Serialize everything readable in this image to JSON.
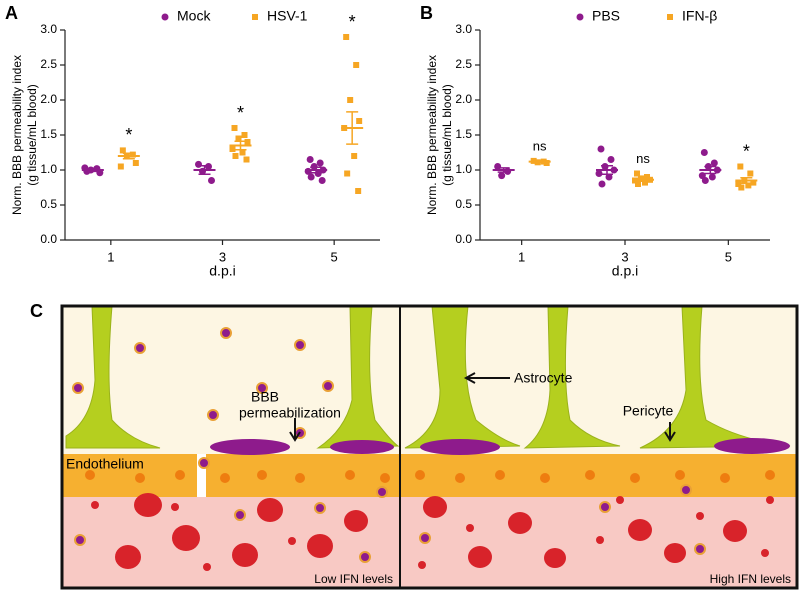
{
  "chart_data": [
    {
      "type": "dot",
      "panel": "A",
      "ylabel": [
        "Norm. BBB permeability index",
        "(g tissue/mL blood)"
      ],
      "xlabel": "d.p.i",
      "categories": [
        "1",
        "3",
        "5"
      ],
      "ylim": [
        0,
        3
      ],
      "yticks": [
        {
          "value": 0,
          "label": "0.0"
        },
        {
          "value": 0.5,
          "label": "0.5"
        },
        {
          "value": 1,
          "label": "1.0"
        },
        {
          "value": 1.5,
          "label": "1.5"
        },
        {
          "value": 2,
          "label": "2.0"
        },
        {
          "value": 2.5,
          "label": "2.5"
        },
        {
          "value": 3,
          "label": "3.0"
        }
      ],
      "series": [
        {
          "name": "Mock",
          "color": "#8e1b8c",
          "marker": "circle",
          "values": [
            [
              0.98,
              1.02,
              1.0,
              0.96,
              1.03
            ],
            [
              1.08,
              1.05,
              0.98,
              0.85
            ],
            [
              1.15,
              1.1,
              1.05,
              1.0,
              0.98,
              0.95,
              0.9,
              0.85
            ]
          ],
          "mean": [
            1.0,
            1.0,
            1.0
          ],
          "sem": [
            0.02,
            0.06,
            0.04
          ]
        },
        {
          "name": "HSV-1",
          "color": "#f6a623",
          "marker": "square",
          "values": [
            [
              1.28,
              1.22,
              1.2,
              1.1,
              1.05
            ],
            [
              1.6,
              1.5,
              1.45,
              1.4,
              1.3,
              1.25,
              1.2,
              1.15
            ],
            [
              2.9,
              2.5,
              2.0,
              1.7,
              1.6,
              1.2,
              0.95,
              0.7
            ]
          ],
          "mean": [
            1.2,
            1.35,
            1.6
          ],
          "sem": [
            0.04,
            0.06,
            0.23
          ],
          "significance": [
            "*",
            "*",
            "*"
          ]
        }
      ]
    },
    {
      "type": "dot",
      "panel": "B",
      "ylabel": [
        "Norm. BBB permeability index",
        "(g tissue/mL blood)"
      ],
      "xlabel": "d.p.i",
      "categories": [
        "1",
        "3",
        "5"
      ],
      "ylim": [
        0,
        3
      ],
      "yticks": [
        {
          "value": 0,
          "label": "0.0"
        },
        {
          "value": 0.5,
          "label": "0.5"
        },
        {
          "value": 1,
          "label": "1.0"
        },
        {
          "value": 1.5,
          "label": "1.5"
        },
        {
          "value": 2,
          "label": "2.0"
        },
        {
          "value": 2.5,
          "label": "2.5"
        },
        {
          "value": 3,
          "label": "3.0"
        }
      ],
      "series": [
        {
          "name": "PBS",
          "color": "#8e1b8c",
          "marker": "circle",
          "values": [
            [
              1.05,
              0.98,
              0.92
            ],
            [
              1.3,
              1.15,
              1.05,
              1.0,
              0.95,
              0.9,
              0.8
            ],
            [
              1.25,
              1.1,
              1.05,
              1.0,
              0.92,
              0.9,
              0.85
            ]
          ],
          "mean": [
            1.0,
            1.0,
            1.0
          ],
          "sem": [
            0.03,
            0.06,
            0.05
          ]
        },
        {
          "name": "IFN-β",
          "color": "#f6a623",
          "marker": "square",
          "values": [
            [
              1.13,
              1.12,
              1.11,
              1.1
            ],
            [
              0.95,
              0.9,
              0.88,
              0.86,
              0.85,
              0.82,
              0.8
            ],
            [
              1.05,
              0.95,
              0.85,
              0.82,
              0.8,
              0.78,
              0.75
            ]
          ],
          "mean": [
            1.12,
            0.86,
            0.85
          ],
          "sem": [
            0.01,
            0.02,
            0.04
          ],
          "significance": [
            "ns",
            "ns",
            "*"
          ]
        }
      ]
    }
  ],
  "diagram": {
    "panel": "C",
    "labels": {
      "endothelium": "Endothelium",
      "bbb": "BBB",
      "permeabilization": "permeabilization",
      "astrocyte": "Astrocyte",
      "pericyte": "Pericyte",
      "low": "Low IFN levels",
      "high": "High IFN levels"
    }
  }
}
